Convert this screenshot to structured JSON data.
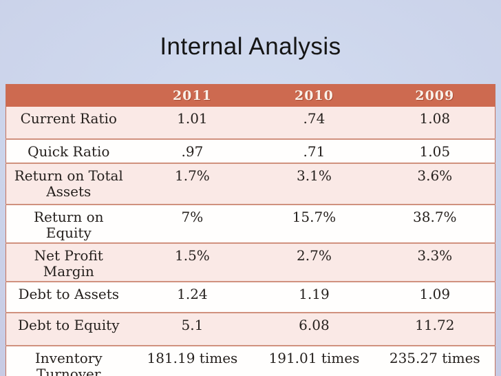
{
  "slide": {
    "title": "Internal Analysis"
  },
  "colors": {
    "header_bg": "#cd6a50",
    "header_text": "#faf1e9",
    "band_pink": "#fae9e6",
    "band_white": "#fffefd",
    "row_separator": "#d0917e",
    "table_border": "#c4705b",
    "cell_text": "#25201d",
    "background_center": "#d2dcf0",
    "background_edge": "#c7c8e2",
    "title_text": "#151515"
  },
  "chart_data": {
    "type": "table",
    "title": "Internal Analysis",
    "columns": [
      "",
      "2011",
      "2010",
      "2009"
    ],
    "rows": [
      {
        "label": "Current Ratio",
        "values": [
          "1.01",
          ".74",
          "1.08"
        ]
      },
      {
        "label": "Quick Ratio",
        "values": [
          ".97",
          ".71",
          "1.05"
        ]
      },
      {
        "label": "Return on Total\nAssets",
        "values": [
          "1.7%",
          "3.1%",
          "3.6%"
        ]
      },
      {
        "label": "Return on Equity",
        "values": [
          "7%",
          "15.7%",
          "38.7%"
        ]
      },
      {
        "label": "Net Profit Margin",
        "values": [
          "1.5%",
          "2.7%",
          "3.3%"
        ]
      },
      {
        "label": "Debt to Assets",
        "values": [
          "1.24",
          "1.19",
          "1.09"
        ]
      },
      {
        "label": "Debt to Equity",
        "values": [
          "5.1",
          "6.08",
          "11.72"
        ]
      },
      {
        "label": "Inventory\nTurnover",
        "values": [
          "181.19 times",
          "191.01 times",
          "235.27 times"
        ]
      }
    ]
  }
}
